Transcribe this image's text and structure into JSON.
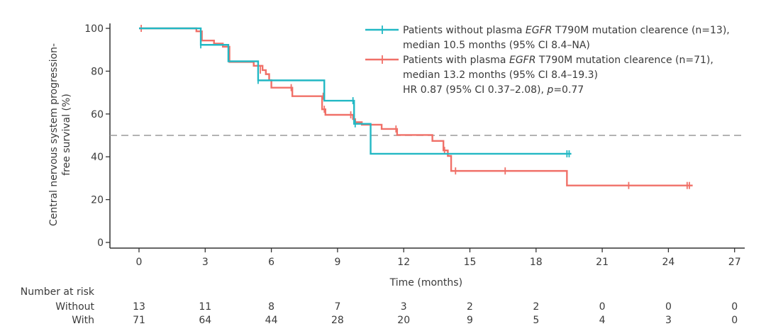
{
  "chart_data": {
    "type": "line",
    "subtype": "kaplan-meier",
    "xlabel": "Time (months)",
    "ylabel_lines": [
      "Central nervous system progression-",
      "free survival (%)"
    ],
    "xlim": [
      0,
      27
    ],
    "ylim": [
      0,
      100
    ],
    "xticks": [
      0,
      3,
      6,
      9,
      12,
      15,
      18,
      21,
      24,
      27
    ],
    "yticks": [
      0,
      20,
      40,
      60,
      80,
      100
    ],
    "grid": false,
    "reference_line": {
      "y": 50,
      "style": "dashed",
      "color": "#9a9a9a"
    },
    "legend": {
      "placement": "top-right",
      "entries": [
        {
          "series": "without",
          "lines": [
            [
              "Patients without plasma ",
              {
                "italic": "EGFR"
              },
              " T790M mutation clearence (n=13),"
            ],
            [
              "median 10.5 months (95% CI 8.4–NA)"
            ]
          ]
        },
        {
          "series": "with",
          "lines": [
            [
              "Patients with plasma ",
              {
                "italic": "EGFR"
              },
              " T790M mutation clearence (n=71),"
            ],
            [
              "median 13.2 months (95% CI 8.4–19.3)"
            ]
          ]
        }
      ],
      "stats_line": [
        "HR 0.87 (95% CI 0.37–2.08), ",
        {
          "italic": "p"
        },
        "=0.77"
      ]
    },
    "series": [
      {
        "key": "without",
        "name": "Patients without plasma EGFR T790M mutation clearence (n=13)",
        "color": "#22b8c4",
        "steps": [
          [
            0,
            100
          ],
          [
            2.8,
            92.3
          ],
          [
            4.05,
            84.6
          ],
          [
            5.4,
            75.7
          ],
          [
            8.4,
            66.2
          ],
          [
            9.75,
            55.4
          ],
          [
            10.5,
            41.4
          ]
        ],
        "end": 19.6,
        "censored": [
          [
            2.8,
            92.3
          ],
          [
            5.4,
            75.7
          ],
          [
            9.7,
            66.2
          ],
          [
            9.8,
            55.4
          ],
          [
            19.4,
            41.4
          ],
          [
            19.5,
            41.4
          ]
        ]
      },
      {
        "key": "with",
        "name": "Patients with plasma EGFR T790M mutation clearence (n=71)",
        "color": "#f07068",
        "steps": [
          [
            0,
            100
          ],
          [
            2.6,
            98.6
          ],
          [
            2.85,
            94.3
          ],
          [
            3.4,
            92.9
          ],
          [
            3.8,
            91.4
          ],
          [
            4.1,
            84.3
          ],
          [
            5.2,
            82.5
          ],
          [
            5.6,
            80.5
          ],
          [
            5.75,
            78.6
          ],
          [
            5.9,
            75.8
          ],
          [
            6.0,
            72.3
          ],
          [
            6.95,
            68.3
          ],
          [
            8.3,
            62.2
          ],
          [
            8.45,
            59.6
          ],
          [
            9.7,
            57.6
          ],
          [
            9.8,
            56.2
          ],
          [
            10.1,
            55.0
          ],
          [
            11.0,
            53.0
          ],
          [
            11.7,
            50.2
          ],
          [
            13.3,
            47.4
          ],
          [
            13.8,
            43.0
          ],
          [
            14.0,
            40.4
          ],
          [
            14.15,
            33.4
          ],
          [
            19.4,
            26.6
          ]
        ],
        "end": 25.1,
        "censored": [
          [
            0.1,
            100
          ],
          [
            5.5,
            80.5
          ],
          [
            6.9,
            72.3
          ],
          [
            8.35,
            68.3
          ],
          [
            8.4,
            62.2
          ],
          [
            9.6,
            59.6
          ],
          [
            9.75,
            57.6
          ],
          [
            11.65,
            53.0
          ],
          [
            13.85,
            43.0
          ],
          [
            14.35,
            33.4
          ],
          [
            16.6,
            33.4
          ],
          [
            22.2,
            26.6
          ],
          [
            24.85,
            26.6
          ],
          [
            24.95,
            26.6
          ]
        ]
      }
    ],
    "number_at_risk": {
      "title": "Number at risk",
      "times": [
        0,
        3,
        6,
        9,
        12,
        15,
        18,
        21,
        24,
        27
      ],
      "rows": [
        {
          "label": "Without",
          "values": [
            13,
            11,
            8,
            7,
            3,
            2,
            2,
            0,
            0,
            0
          ]
        },
        {
          "label": "With",
          "values": [
            71,
            64,
            44,
            28,
            20,
            9,
            5,
            4,
            3,
            0
          ]
        }
      ]
    }
  }
}
